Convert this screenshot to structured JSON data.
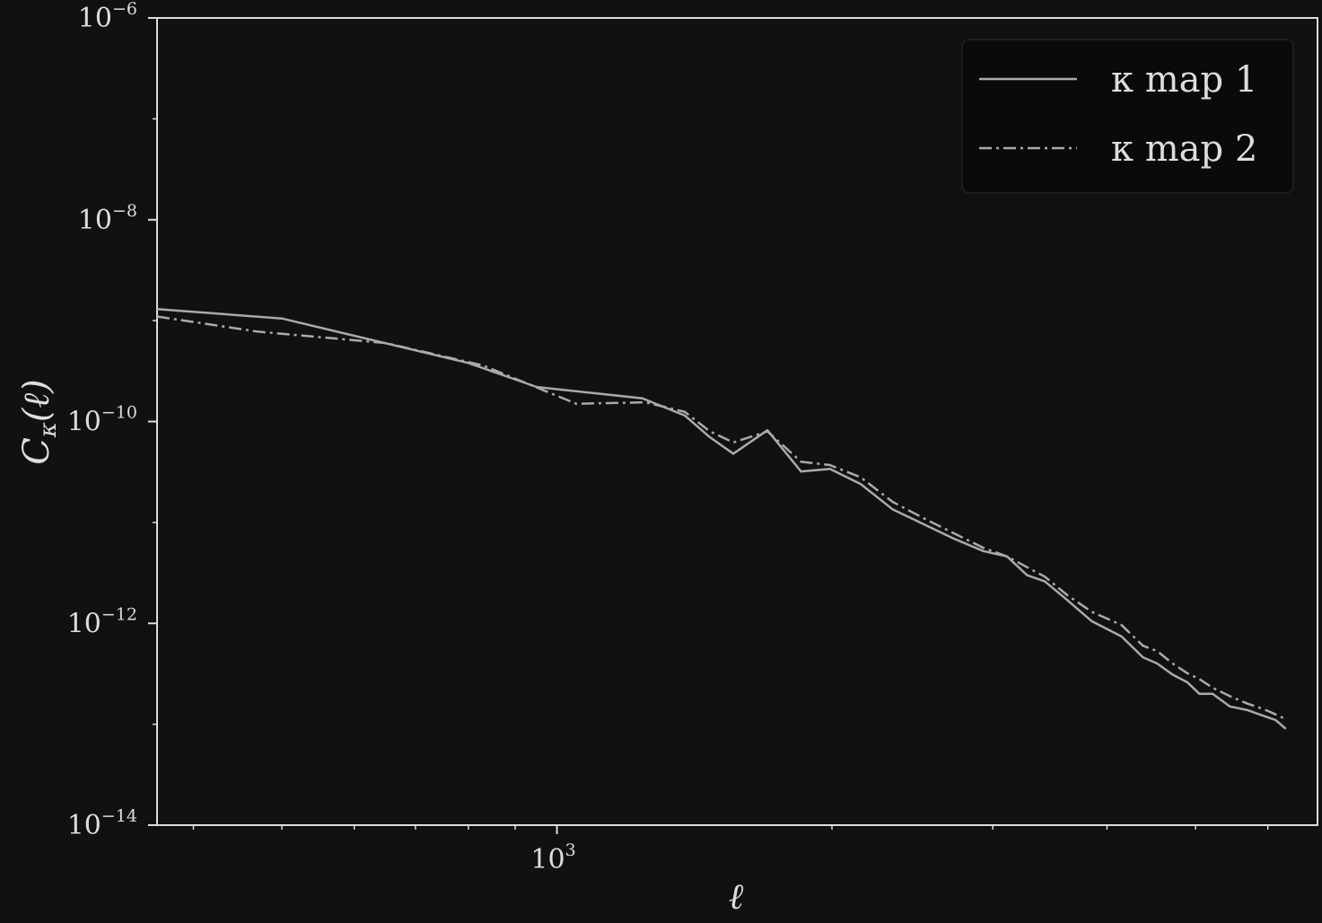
{
  "chart_data": {
    "type": "line",
    "title": "",
    "xlabel": "ℓ",
    "ylabel": {
      "main": "C",
      "sub": "κ",
      "arg": "(ℓ)"
    },
    "xscale": "log",
    "yscale": "log",
    "xlim": [
      365,
      6800
    ],
    "ylim": [
      1e-14,
      1e-06
    ],
    "x_ticks": [
      {
        "value": 1000,
        "base": "10",
        "exp": "3"
      }
    ],
    "y_ticks": [
      {
        "value": 1e-14,
        "base": "10",
        "exp": "−14"
      },
      {
        "value": 1e-12,
        "base": "10",
        "exp": "−12"
      },
      {
        "value": 1e-10,
        "base": "10",
        "exp": "−10"
      },
      {
        "value": 1e-08,
        "base": "10",
        "exp": "−8"
      },
      {
        "value": 1e-06,
        "base": "10",
        "exp": "−6"
      }
    ],
    "grid": false,
    "legend_position": "top-right",
    "series": [
      {
        "name": "κ map 1",
        "style": "solid",
        "color": "#aaaaaa",
        "points": [
          [
            365,
            1.3e-09
          ],
          [
            500,
            1.05e-09
          ],
          [
            800,
            3.8e-10
          ],
          [
            950,
            2.2e-10
          ],
          [
            1240,
            1.7e-10
          ],
          [
            1380,
            1.15e-10
          ],
          [
            1470,
            7e-11
          ],
          [
            1560,
            4.8e-11
          ],
          [
            1700,
            8.2e-11
          ],
          [
            1850,
            3.2e-11
          ],
          [
            1990,
            3.4e-11
          ],
          [
            2150,
            2.4e-11
          ],
          [
            2330,
            1.35e-11
          ],
          [
            2520,
            9.6e-12
          ],
          [
            2720,
            6.9e-12
          ],
          [
            2930,
            5.2e-12
          ],
          [
            3110,
            4.6e-12
          ],
          [
            3270,
            3e-12
          ],
          [
            3420,
            2.6e-12
          ],
          [
            3620,
            1.7e-12
          ],
          [
            3850,
            1.05e-12
          ],
          [
            4150,
            7.4e-13
          ],
          [
            4380,
            4.6e-13
          ],
          [
            4540,
            4e-13
          ],
          [
            4720,
            3.1e-13
          ],
          [
            4900,
            2.6e-13
          ],
          [
            5050,
            2e-13
          ],
          [
            5220,
            2e-13
          ],
          [
            5450,
            1.5e-13
          ],
          [
            5700,
            1.38e-13
          ],
          [
            5950,
            1.2e-13
          ],
          [
            6120,
            1.1e-13
          ],
          [
            6280,
            9e-14
          ]
        ]
      },
      {
        "name": "κ map 2",
        "style": "dashdot",
        "color": "#aaaaaa",
        "points": [
          [
            365,
            1.1e-09
          ],
          [
            470,
            7.8e-10
          ],
          [
            650,
            6e-10
          ],
          [
            830,
            3.6e-10
          ],
          [
            1050,
            1.5e-10
          ],
          [
            1250,
            1.55e-10
          ],
          [
            1380,
            1.25e-10
          ],
          [
            1470,
            8e-11
          ],
          [
            1560,
            6.2e-11
          ],
          [
            1700,
            8e-11
          ],
          [
            1850,
            4e-11
          ],
          [
            1990,
            3.7e-11
          ],
          [
            2150,
            2.8e-11
          ],
          [
            2330,
            1.6e-11
          ],
          [
            2520,
            1.1e-11
          ],
          [
            2720,
            7.8e-12
          ],
          [
            2930,
            5.6e-12
          ],
          [
            3110,
            4.6e-12
          ],
          [
            3270,
            3.6e-12
          ],
          [
            3420,
            2.9e-12
          ],
          [
            3620,
            1.9e-12
          ],
          [
            3850,
            1.3e-12
          ],
          [
            4150,
            9.6e-13
          ],
          [
            4380,
            6e-13
          ],
          [
            4540,
            5.3e-13
          ],
          [
            4720,
            4e-13
          ],
          [
            4900,
            3.2e-13
          ],
          [
            5050,
            2.8e-13
          ],
          [
            5220,
            2.3e-13
          ],
          [
            5450,
            1.9e-13
          ],
          [
            5700,
            1.6e-13
          ],
          [
            5950,
            1.4e-13
          ],
          [
            6120,
            1.25e-13
          ],
          [
            6280,
            1.12e-13
          ]
        ]
      }
    ]
  }
}
